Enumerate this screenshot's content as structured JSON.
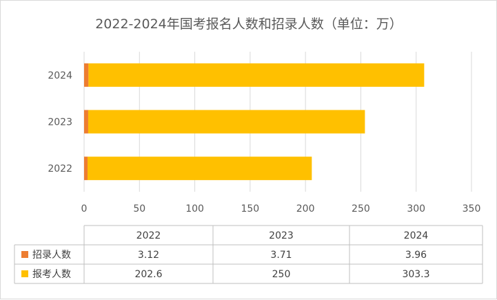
{
  "chart_data": {
    "type": "bar",
    "orientation": "horizontal",
    "stacked": true,
    "title": "2022-2024年国考报名人数和招录人数（单位：万）",
    "categories": [
      "2022",
      "2023",
      "2024"
    ],
    "series": [
      {
        "name": "招录人数",
        "values": [
          3.12,
          3.71,
          3.96
        ],
        "color": "#ed7d31"
      },
      {
        "name": "报考人数",
        "values": [
          202.6,
          250,
          303.3
        ],
        "color": "#ffc000"
      }
    ],
    "xlim": [
      0,
      350
    ],
    "xticks": [
      0,
      50,
      100,
      150,
      200,
      250,
      300,
      350
    ],
    "grid": true,
    "data_table": true
  }
}
